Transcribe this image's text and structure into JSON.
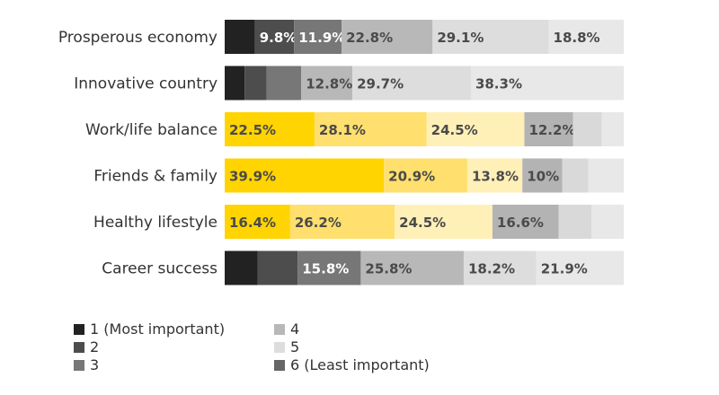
{
  "chart_data": {
    "type": "bar",
    "orientation": "horizontal",
    "stacked": true,
    "normalized_percent": true,
    "title": "",
    "xlabel": "",
    "ylabel": "",
    "xlim": [
      0,
      100
    ],
    "grid": false,
    "legend_position": "bottom-left",
    "categories": [
      "Prosperous economy",
      "Innovative country",
      "Work/life balance",
      "Friends & family",
      "Healthy lifestyle",
      "Career success"
    ],
    "segment_labels": [
      [
        "",
        "9.8%",
        "11.9%",
        "22.8%",
        "29.1%",
        "18.8%"
      ],
      [
        "",
        "",
        "",
        "12.8%",
        "29.7%",
        "38.3%"
      ],
      [
        "22.5%",
        "28.1%",
        "24.5%",
        "12.2%",
        "",
        ""
      ],
      [
        "39.9%",
        "20.9%",
        "13.8%",
        "10%",
        "",
        ""
      ],
      [
        "16.4%",
        "26.2%",
        "24.5%",
        "16.6%",
        "",
        ""
      ],
      [
        "",
        "",
        "15.8%",
        "25.8%",
        "18.2%",
        "21.9%"
      ]
    ],
    "rows": [
      {
        "category": "Prosperous economy",
        "segments": [
          {
            "rank": "1",
            "value": 7.6
          },
          {
            "rank": "2",
            "value": 9.8
          },
          {
            "rank": "3",
            "value": 11.9
          },
          {
            "rank": "4",
            "value": 22.8
          },
          {
            "rank": "5",
            "value": 29.1
          },
          {
            "rank": "6",
            "value": 18.8
          }
        ]
      },
      {
        "category": "Innovative country",
        "segments": [
          {
            "rank": "1",
            "value": 5.0
          },
          {
            "rank": "2",
            "value": 5.5
          },
          {
            "rank": "3",
            "value": 8.7
          },
          {
            "rank": "4",
            "value": 12.8
          },
          {
            "rank": "5",
            "value": 29.7
          },
          {
            "rank": "6",
            "value": 38.3
          }
        ]
      },
      {
        "category": "Work/life balance",
        "segments": [
          {
            "rank": "1",
            "value": 22.5
          },
          {
            "rank": "2",
            "value": 28.1
          },
          {
            "rank": "3",
            "value": 24.5
          },
          {
            "rank": "4",
            "value": 12.2
          },
          {
            "rank": "5",
            "value": 7.2
          },
          {
            "rank": "6",
            "value": 5.5
          }
        ]
      },
      {
        "category": "Friends & family",
        "segments": [
          {
            "rank": "1",
            "value": 39.9
          },
          {
            "rank": "2",
            "value": 20.9
          },
          {
            "rank": "3",
            "value": 13.8
          },
          {
            "rank": "4",
            "value": 10.0
          },
          {
            "rank": "5",
            "value": 6.5
          },
          {
            "rank": "6",
            "value": 8.9
          }
        ]
      },
      {
        "category": "Healthy lifestyle",
        "segments": [
          {
            "rank": "1",
            "value": 16.4
          },
          {
            "rank": "2",
            "value": 26.2
          },
          {
            "rank": "3",
            "value": 24.5
          },
          {
            "rank": "4",
            "value": 16.6
          },
          {
            "rank": "5",
            "value": 8.2
          },
          {
            "rank": "6",
            "value": 8.1
          }
        ]
      },
      {
        "category": "Career success",
        "segments": [
          {
            "rank": "1",
            "value": 8.3
          },
          {
            "rank": "2",
            "value": 10.0
          },
          {
            "rank": "3",
            "value": 15.8
          },
          {
            "rank": "4",
            "value": 25.8
          },
          {
            "rank": "5",
            "value": 18.2
          },
          {
            "rank": "6",
            "value": 21.9
          }
        ]
      }
    ],
    "legend": [
      {
        "rank": "1",
        "label": "1 (Most important)",
        "color": "#222222"
      },
      {
        "rank": "2",
        "label": "2",
        "color": "#4d4d4d"
      },
      {
        "rank": "3",
        "label": "3",
        "color": "#777777"
      },
      {
        "rank": "4",
        "label": "4",
        "color": "#b8b8b8"
      },
      {
        "rank": "5",
        "label": "5",
        "color": "#dddddd"
      },
      {
        "rank": "6",
        "label": "6 (Least important)",
        "color": "#666666"
      }
    ],
    "colors": {
      "rank_gray": [
        "#222222",
        "#4d4d4d",
        "#777777",
        "#b8b8b8",
        "#dddddd",
        "#e8e8e8"
      ],
      "rank_yellow": [
        "#ffd400",
        "#ffdf6e",
        "#fff0b8",
        "#b3b3b3",
        "#d9d9d9",
        "#e8e8e8"
      ],
      "yellow_rows": [
        "Work/life balance",
        "Friends & family",
        "Healthy lifestyle"
      ],
      "label_on_dark": "#ffffff",
      "label_on_light": "#4a4a4a"
    }
  }
}
